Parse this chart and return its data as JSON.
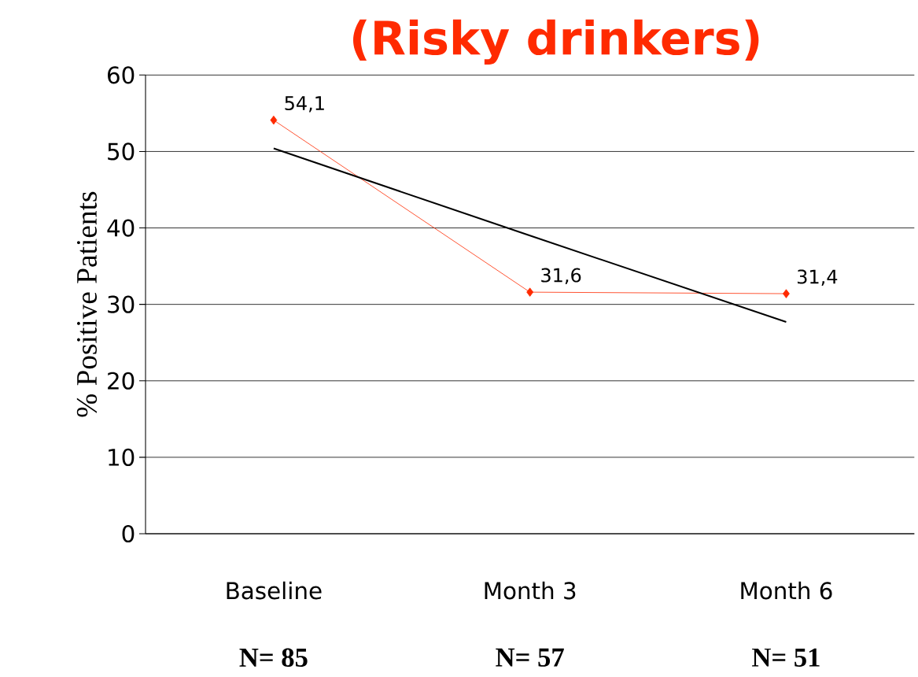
{
  "chart_data": {
    "type": "line",
    "title": "(Risky drinkers)",
    "ylabel": "% Positive Patients",
    "categories": [
      "Baseline",
      "Month 3",
      "Month 6"
    ],
    "series": [
      {
        "color": "#ff2a00",
        "values": [
          54.1,
          31.6,
          31.4
        ],
        "marker": "diamond",
        "value_labels": [
          "54,1",
          "31,6",
          "31,4"
        ]
      },
      {
        "color": "#000000",
        "values": [
          50.4,
          39.0,
          27.7
        ],
        "marker": "none"
      }
    ],
    "ylim": [
      0,
      60
    ],
    "yticks": [
      0,
      10,
      20,
      30,
      40,
      50,
      60
    ],
    "grid": "y",
    "annotations": [
      "N= 85",
      "N= 57",
      "N= 51"
    ]
  }
}
